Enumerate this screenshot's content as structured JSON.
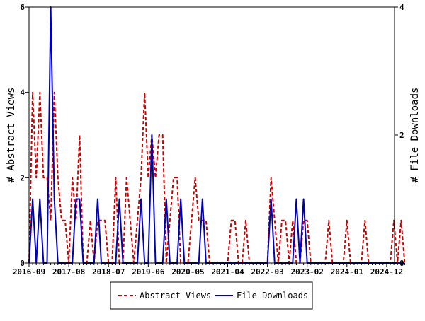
{
  "chart_data": {
    "type": "line",
    "title": "",
    "x_tick_labels": [
      "2016-09",
      "2017-08",
      "2018-07",
      "2019-06",
      "2020-05",
      "2021-04",
      "2022-03",
      "2023-02",
      "2024-01",
      "2024-12"
    ],
    "x_tick_month_index": [
      0,
      11,
      22,
      33,
      44,
      55,
      66,
      77,
      88,
      99
    ],
    "y_left": {
      "label": "# Abstract Views",
      "range": [
        0,
        6
      ],
      "ticks": [
        "0",
        "2",
        "4",
        "6"
      ]
    },
    "y_right": {
      "label": "# File Downloads",
      "range": [
        0,
        4
      ],
      "ticks": [
        "0",
        "2",
        "4"
      ]
    },
    "legend_position": "bottom",
    "colors": {
      "abstract": "#cc0000",
      "downloads": "#0000bb"
    },
    "series": [
      {
        "name": "Abstract Views",
        "axis": "left",
        "style": "dashed",
        "values": [
          0,
          4,
          2,
          4,
          2,
          2,
          1,
          4,
          2,
          1,
          1,
          0,
          2,
          1,
          3,
          0,
          0,
          1,
          0,
          1,
          1,
          1,
          0,
          0,
          2,
          0,
          0,
          2,
          1,
          0,
          1,
          2,
          4,
          2,
          3,
          2,
          3,
          3,
          0,
          1,
          2,
          2,
          0,
          0,
          0,
          1,
          2,
          1,
          1,
          1,
          0,
          0,
          0,
          0,
          0,
          0,
          1,
          1,
          0,
          0,
          1,
          0,
          0,
          0,
          0,
          0,
          0,
          2,
          1,
          0,
          1,
          1,
          0,
          1,
          0,
          0,
          1,
          1,
          0,
          0,
          0,
          0,
          0,
          1,
          0,
          0,
          0,
          0,
          1,
          0,
          0,
          0,
          0,
          1,
          0,
          0,
          0,
          0,
          0,
          0,
          0,
          1,
          0,
          1,
          0
        ]
      },
      {
        "name": "File Downloads",
        "axis": "right",
        "style": "solid",
        "values": [
          0,
          1,
          0,
          1,
          0,
          0,
          4,
          1,
          0,
          0,
          0,
          0,
          0,
          1,
          1,
          0,
          0,
          0,
          0,
          1,
          0,
          0,
          0,
          0,
          0,
          1,
          0,
          0,
          0,
          0,
          0,
          1,
          0,
          0,
          2,
          0,
          0,
          0,
          1,
          0,
          0,
          0,
          1,
          0,
          0,
          0,
          0,
          0,
          1,
          0,
          0,
          0,
          0,
          0,
          0,
          0,
          0,
          0,
          0,
          0,
          0,
          0,
          0,
          0,
          0,
          0,
          0,
          1,
          0,
          0,
          0,
          0,
          0,
          0,
          1,
          0,
          1,
          0,
          0,
          0,
          0,
          0,
          0,
          0,
          0,
          0,
          0,
          0,
          0,
          0,
          0,
          0,
          0,
          0,
          0,
          0,
          0,
          0,
          0,
          0,
          0,
          0,
          0,
          0,
          0
        ]
      }
    ]
  }
}
